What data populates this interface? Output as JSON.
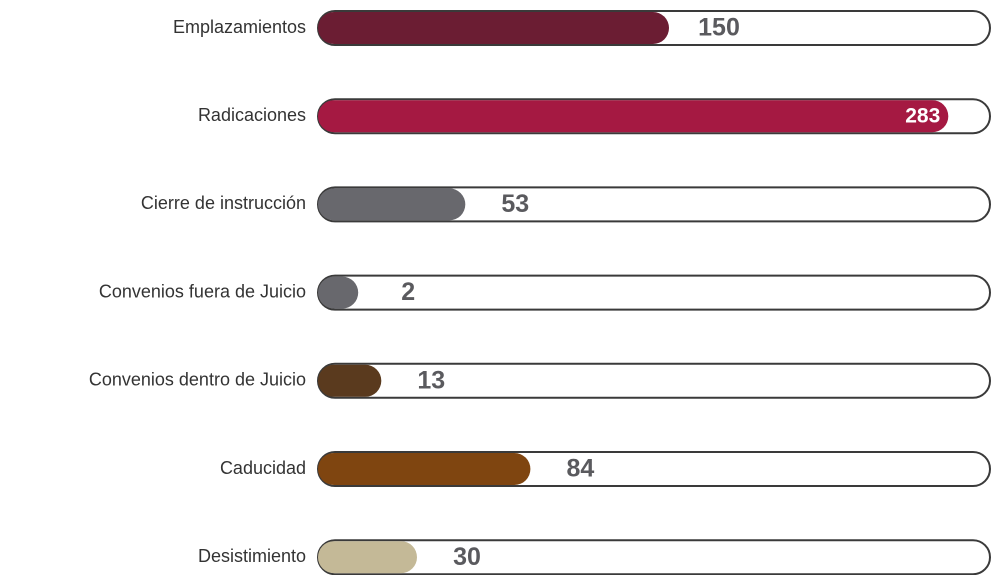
{
  "chart_data": {
    "type": "bar",
    "orientation": "horizontal",
    "categories": [
      "Emplazamientos",
      "Radicaciones",
      "Cierre de instrucción",
      "Convenios fuera de Juicio",
      "Convenios dentro de Juicio",
      "Caducidad",
      "Desistimiento"
    ],
    "values": [
      150,
      283,
      53,
      2,
      13,
      84,
      30
    ],
    "colors": [
      "#6b1d33",
      "#a51942",
      "#68686d",
      "#68686d",
      "#5a3a1e",
      "#7f4510",
      "#c4b997"
    ]
  }
}
